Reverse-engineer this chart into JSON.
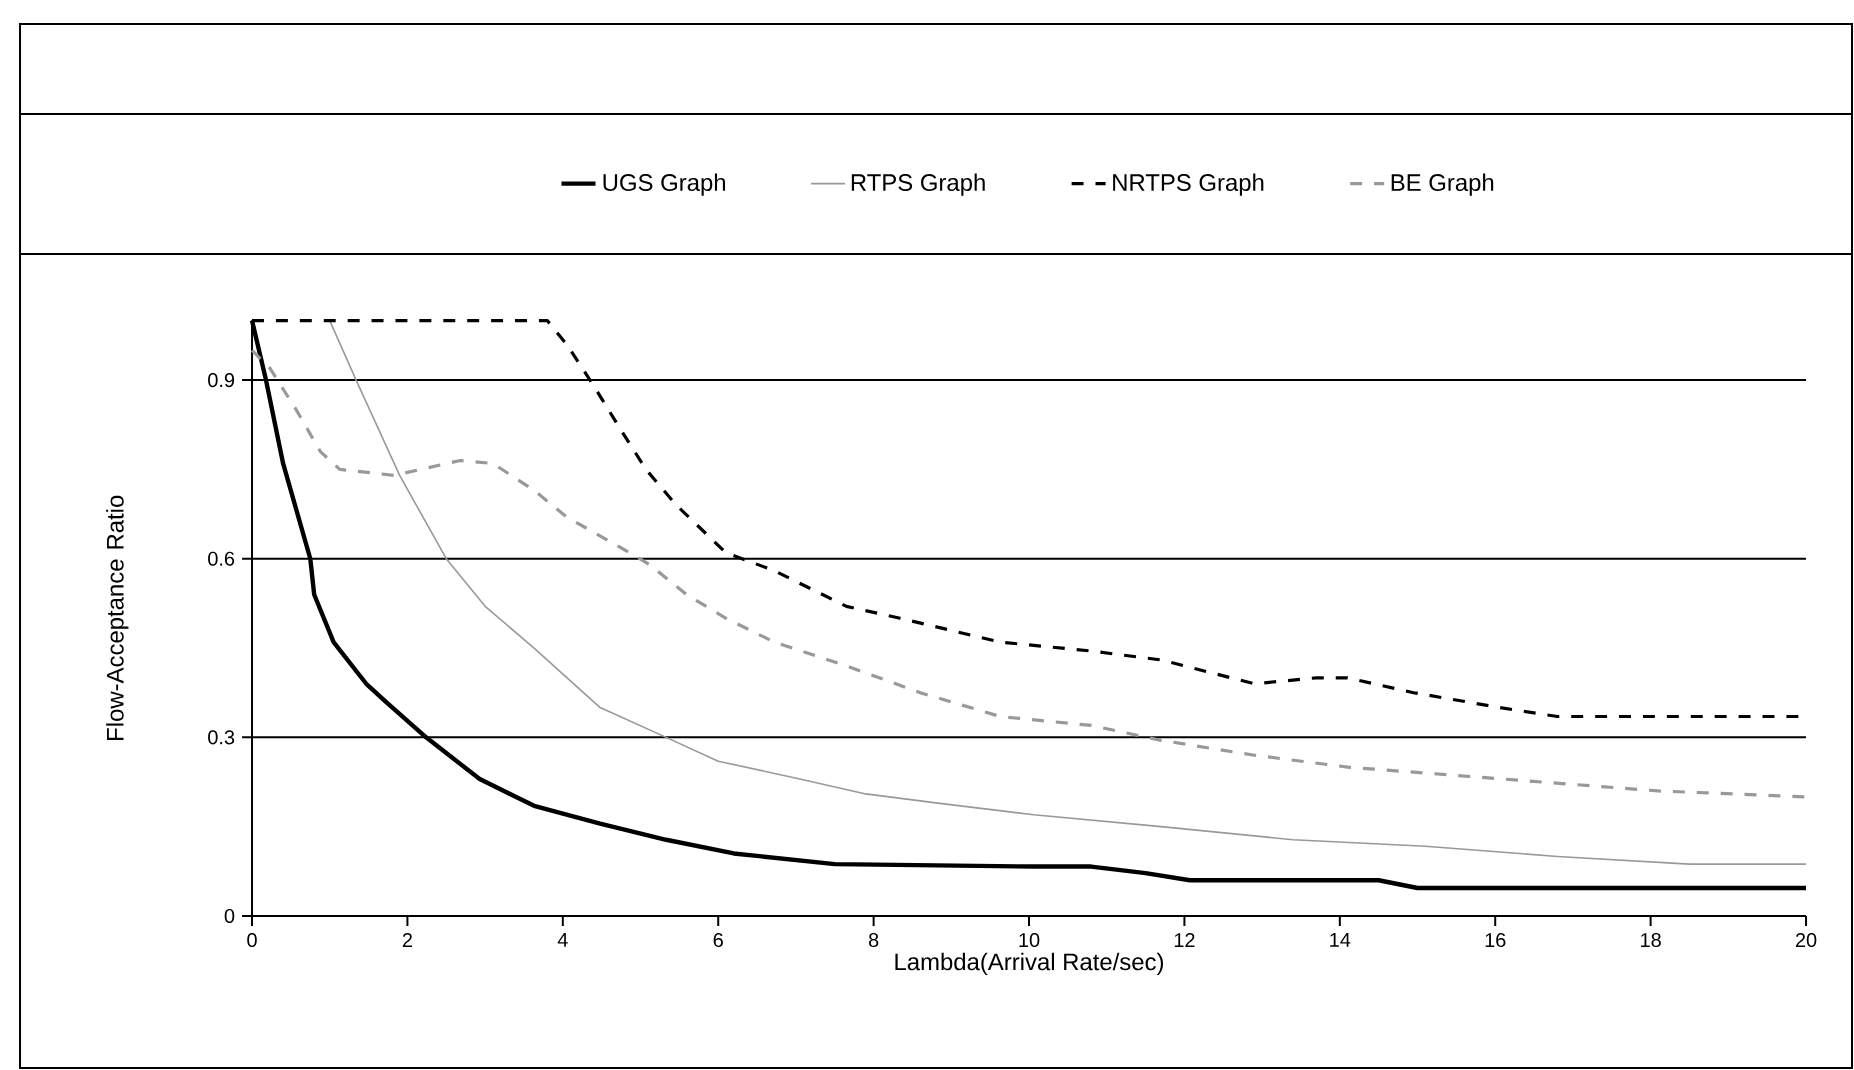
{
  "chart_data": {
    "type": "line",
    "xlabel": "Lambda(Arrival Rate/sec)",
    "ylabel": "Flow-Acceptance Ratio",
    "xlim": [
      0,
      20
    ],
    "ylim": [
      0,
      1
    ],
    "xticks": [
      0,
      2,
      4,
      6,
      8,
      10,
      12,
      14,
      16,
      18,
      20
    ],
    "yticks": [
      0,
      0.3,
      0.6,
      0.9
    ],
    "grid": "y",
    "legend": "top",
    "series": [
      {
        "name": "UGS Graph",
        "color": "#000000",
        "line_style": "solid",
        "x": [
          0,
          0.18,
          0.4,
          0.75,
          0.8,
          1.05,
          1.47,
          1.72,
          2.24,
          2.93,
          3.63,
          4.48,
          5.33,
          6.2,
          7.5,
          10.06,
          10.8,
          11.5,
          12.07,
          14.5,
          15.0,
          20
        ],
        "values": [
          1.0,
          0.9,
          0.76,
          0.6,
          0.54,
          0.46,
          0.39,
          0.36,
          0.3,
          0.23,
          0.185,
          0.155,
          0.128,
          0.105,
          0.087,
          0.083,
          0.083,
          0.072,
          0.06,
          0.06,
          0.047,
          0.047
        ]
      },
      {
        "name": "RTPS Graph",
        "color": "#999999",
        "line_style": "solid",
        "x": [
          1.0,
          1.34,
          1.9,
          2.5,
          3.0,
          3.63,
          4.48,
          5.33,
          6.0,
          7.05,
          7.9,
          8.8,
          10.06,
          11.7,
          13.4,
          15.1,
          16.8,
          18.5,
          20
        ],
        "values": [
          1.0,
          0.9,
          0.74,
          0.6,
          0.52,
          0.45,
          0.35,
          0.3,
          0.26,
          0.23,
          0.205,
          0.19,
          0.17,
          0.15,
          0.128,
          0.117,
          0.1,
          0.087,
          0.087
        ]
      },
      {
        "name": "NRTPS Graph",
        "color": "#000000",
        "line_style": "dashed",
        "x": [
          0,
          3.8,
          4.05,
          4.4,
          4.73,
          5.07,
          5.46,
          6.1,
          6.72,
          7.65,
          8.34,
          9.63,
          10.8,
          11.7,
          12.9,
          13.7,
          14.1,
          14.95,
          16.06,
          16.8,
          18.1,
          20
        ],
        "values": [
          1.0,
          1.0,
          0.96,
          0.89,
          0.82,
          0.75,
          0.69,
          0.61,
          0.58,
          0.52,
          0.5,
          0.46,
          0.445,
          0.43,
          0.39,
          0.4,
          0.4,
          0.375,
          0.35,
          0.335,
          0.335,
          0.335
        ]
      },
      {
        "name": "BE Graph",
        "color": "#999999",
        "line_style": "dashed",
        "x": [
          0,
          0.23,
          0.57,
          0.88,
          1.13,
          1.83,
          2.68,
          3.1,
          3.63,
          4.05,
          4.66,
          5.12,
          5.59,
          6.1,
          6.72,
          7.65,
          8.6,
          9.63,
          10.8,
          11.7,
          12.9,
          14.1,
          15.1,
          16.1,
          17.1,
          18.1,
          20
        ],
        "values": [
          0.95,
          0.92,
          0.85,
          0.78,
          0.75,
          0.74,
          0.765,
          0.76,
          0.715,
          0.67,
          0.625,
          0.59,
          0.54,
          0.5,
          0.46,
          0.42,
          0.375,
          0.335,
          0.32,
          0.295,
          0.27,
          0.25,
          0.24,
          0.23,
          0.22,
          0.21,
          0.2
        ]
      }
    ]
  }
}
